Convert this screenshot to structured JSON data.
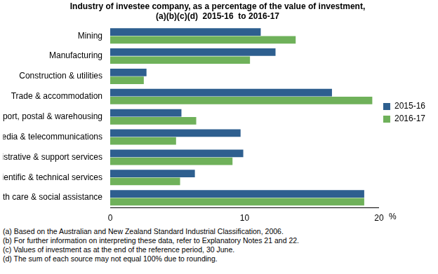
{
  "chart_data": {
    "type": "bar",
    "orientation": "horizontal",
    "title": [
      "Industry of investee company, as a percentage of the value of investment,",
      "(a)(b)(c)(d)  2015-16  to 2016-17"
    ],
    "x_label": "%",
    "categories": [
      "Mining",
      "Manufacturing",
      "Construction & utilities",
      "Trade & accommodation",
      "Transport, postal & warehousing",
      "Information media & telecommunications",
      "Finance, administrative & support services",
      "Professional, scientific & technical services",
      "Health care & social assistance"
    ],
    "series": [
      {
        "name": "2015-16",
        "color": "#2e5f8f",
        "values": [
          11.2,
          12.3,
          2.7,
          16.5,
          5.3,
          9.7,
          9.9,
          6.3,
          18.9
        ]
      },
      {
        "name": "2016-17",
        "color": "#6fb15a",
        "values": [
          13.8,
          10.4,
          2.5,
          19.5,
          6.4,
          4.9,
          9.1,
          5.2,
          18.9
        ]
      }
    ],
    "xlim": [
      0,
      20
    ],
    "xticks": [
      0,
      10,
      20
    ],
    "grid": false,
    "legend": "right",
    "notes": [
      "(a) Based on the Australian and New Zealand Standard Industrial Classification, 2006.",
      "(b) For further information on interpreting these data, refer to Explanatory Notes 21 and 22.",
      "(c) Values of investment as at the end of the reference period, 30 June.",
      "(d) The sum of each source may not equal 100% due to rounding."
    ]
  }
}
